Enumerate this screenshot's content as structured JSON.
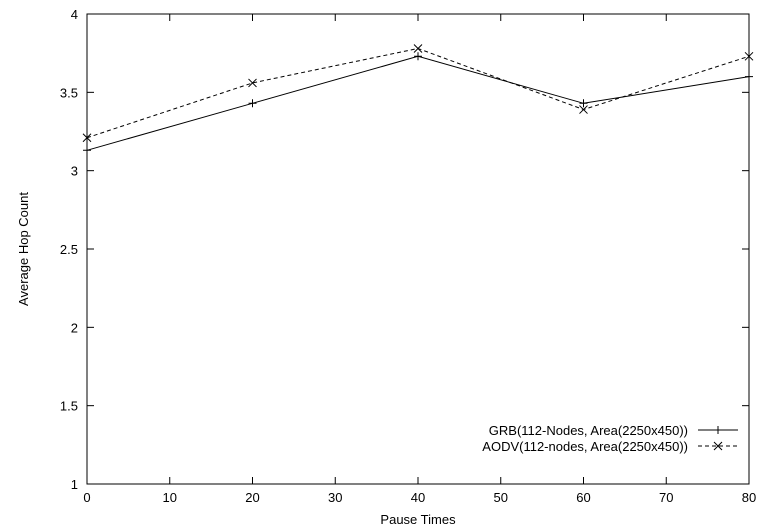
{
  "chart_data": {
    "type": "line",
    "title": "",
    "xlabel": "Pause Times",
    "ylabel": "Average Hop Count",
    "xlim": [
      0,
      80
    ],
    "ylim": [
      1,
      4
    ],
    "xticks": [
      0,
      10,
      20,
      30,
      40,
      50,
      60,
      70,
      80
    ],
    "yticks": [
      1,
      1.5,
      2,
      2.5,
      3,
      3.5,
      4
    ],
    "ytick_labels": [
      "1",
      "1.5",
      "2",
      "2.5",
      "3",
      "3.5",
      "4"
    ],
    "grid": false,
    "legend_position": "bottom-right",
    "x": [
      0,
      20,
      40,
      60,
      80
    ],
    "series": [
      {
        "name": "GRB(112-Nodes, Area(2250x450))",
        "marker": "plus",
        "line_style": "solid",
        "values": [
          3.13,
          3.43,
          3.73,
          3.43,
          3.6
        ]
      },
      {
        "name": "AODV(112-nodes, Area(2250x450))",
        "marker": "x",
        "line_style": "dashed",
        "values": [
          3.21,
          3.56,
          3.78,
          3.39,
          3.73
        ]
      }
    ]
  }
}
